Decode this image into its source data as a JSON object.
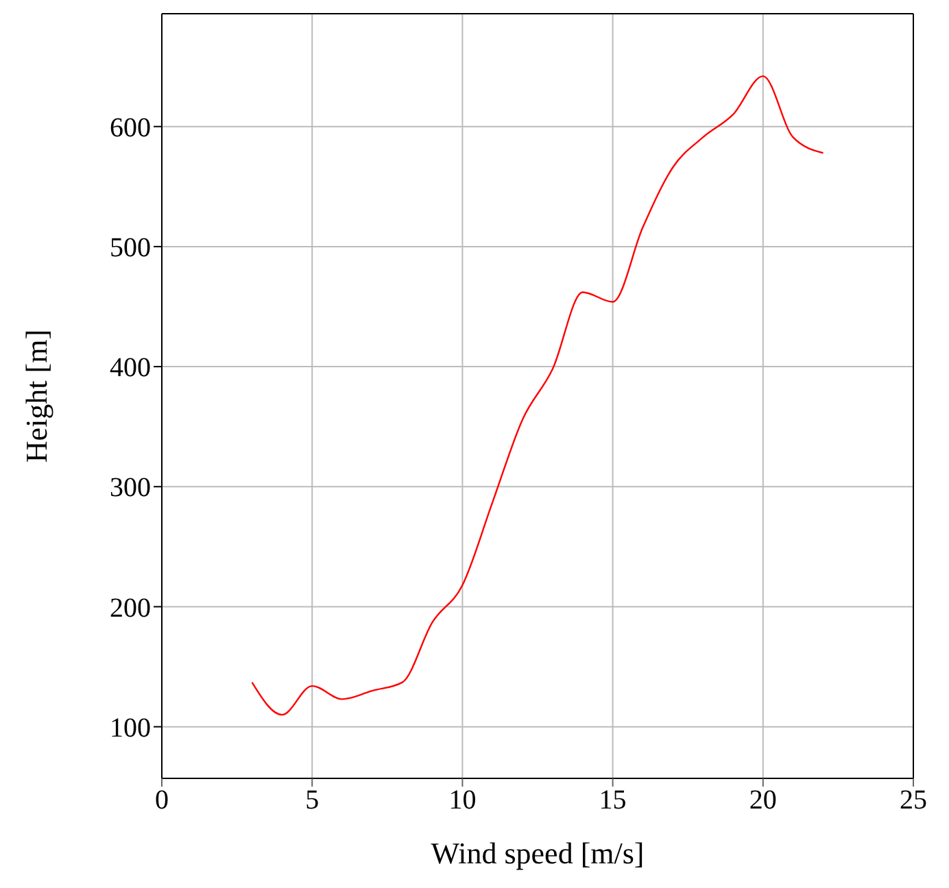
{
  "chart_data": {
    "type": "line",
    "xlabel": "Wind speed    [m/s]",
    "ylabel": "Height    [m]",
    "x": [
      3,
      4,
      5,
      6,
      7,
      8,
      9,
      10,
      11,
      12,
      13,
      14,
      15,
      16,
      17,
      18,
      19,
      20,
      21,
      22
    ],
    "series": [
      {
        "color": "#ff0000",
        "values": [
          137,
          110,
          134,
          123,
          130,
          137,
          187,
          218,
          287,
          356,
          398,
          462,
          454,
          516,
          566,
          591,
          610,
          642,
          591,
          578
        ]
      }
    ],
    "xlim": [
      0,
      25
    ],
    "xticks": [
      0,
      5,
      10,
      15,
      20,
      25
    ],
    "ylim": [
      57,
      694
    ],
    "yticks": [
      100,
      200,
      300,
      400,
      500,
      600
    ],
    "grid": true,
    "legend": false,
    "marker": "none",
    "line_style": "solid"
  }
}
